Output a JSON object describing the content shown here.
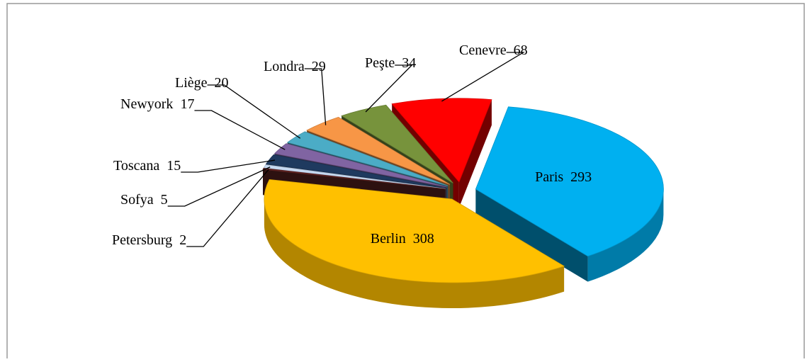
{
  "chart_data": {
    "type": "pie",
    "categories": [
      "Paris",
      "Berlin",
      "Petersburg",
      "Sofya",
      "Toscana",
      "Newyork",
      "Liège",
      "Londra",
      "Peşte",
      "Cenevre"
    ],
    "values": [
      293,
      308,
      2,
      5,
      15,
      17,
      20,
      29,
      34,
      68
    ],
    "colors": [
      "#00b0f0",
      "#ffc000",
      "#632523",
      "#c6d9f1",
      "#1f3a5f",
      "#8064a2",
      "#4bacc6",
      "#f79646",
      "#77933c",
      "#ff0000"
    ]
  }
}
